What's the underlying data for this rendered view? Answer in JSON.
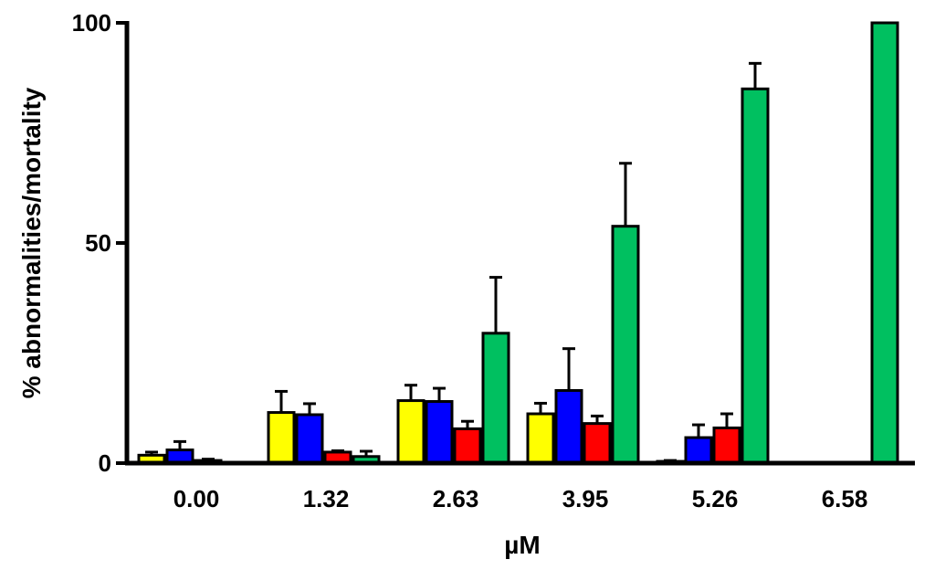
{
  "chart_data": {
    "type": "bar",
    "title": "",
    "xlabel": "µM",
    "ylabel": "% abnormalities/mortality",
    "categories": [
      "0.00",
      "1.32",
      "2.63",
      "3.95",
      "5.26",
      "6.58"
    ],
    "ylim": [
      0,
      100
    ],
    "yticks": [
      "0",
      "50",
      "100"
    ],
    "grid": false,
    "legend": "none",
    "error_bars": "upper",
    "series": [
      {
        "color": "#ffff00",
        "values": [
          1.8,
          11.5,
          14.2,
          11.2,
          0.4,
          0
        ],
        "errors": [
          0.7,
          4.8,
          3.5,
          2.4,
          0.2,
          0
        ]
      },
      {
        "color": "#0000ff",
        "values": [
          3.0,
          11.0,
          14.0,
          16.5,
          5.8,
          0
        ],
        "errors": [
          1.9,
          2.5,
          3.0,
          9.5,
          2.9,
          0
        ]
      },
      {
        "color": "#ff0000",
        "values": [
          0.6,
          2.5,
          7.8,
          9.0,
          8.0,
          0
        ],
        "errors": [
          0.3,
          0.3,
          1.7,
          1.7,
          3.2,
          0
        ]
      },
      {
        "color": "#00c060",
        "values": [
          0.1,
          1.5,
          29.5,
          53.8,
          85.0,
          100
        ],
        "errors": [
          0,
          1.2,
          12.7,
          14.3,
          5.8,
          0
        ]
      }
    ]
  }
}
